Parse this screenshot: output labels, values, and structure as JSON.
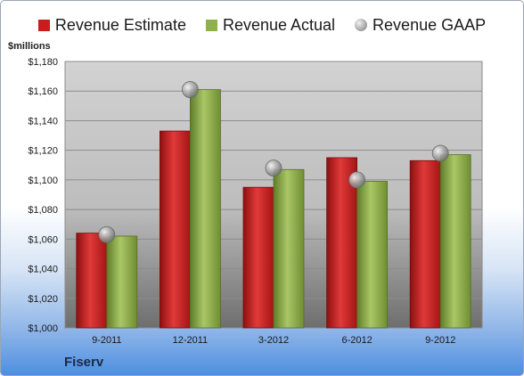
{
  "legend": {
    "estimate": "Revenue Estimate",
    "actual": "Revenue Actual",
    "gaap": "Revenue GAAP"
  },
  "units_label": "$millions",
  "company": "Fiserv",
  "colors": {
    "estimate": "#c81d1d",
    "actual": "#8fb04a",
    "gaap": "#a8a8a8"
  },
  "chart_data": {
    "type": "bar",
    "categories": [
      "9-2011",
      "12-2011",
      "3-2012",
      "6-2012",
      "9-2012"
    ],
    "series": [
      {
        "name": "Revenue Estimate",
        "values": [
          1064,
          1133,
          1095,
          1115,
          1113
        ]
      },
      {
        "name": "Revenue Actual",
        "values": [
          1062,
          1161,
          1107,
          1099,
          1117
        ]
      },
      {
        "name": "Revenue GAAP",
        "values": [
          1063,
          1161,
          1108,
          1100,
          1118
        ]
      }
    ],
    "ylabel": "$millions",
    "ylim": [
      1000,
      1180
    ],
    "yticks": [
      "$1,000",
      "$1,020",
      "$1,040",
      "$1,060",
      "$1,080",
      "$1,100",
      "$1,120",
      "$1,140",
      "$1,160",
      "$1,180"
    ],
    "grid": true,
    "legend_position": "top"
  }
}
